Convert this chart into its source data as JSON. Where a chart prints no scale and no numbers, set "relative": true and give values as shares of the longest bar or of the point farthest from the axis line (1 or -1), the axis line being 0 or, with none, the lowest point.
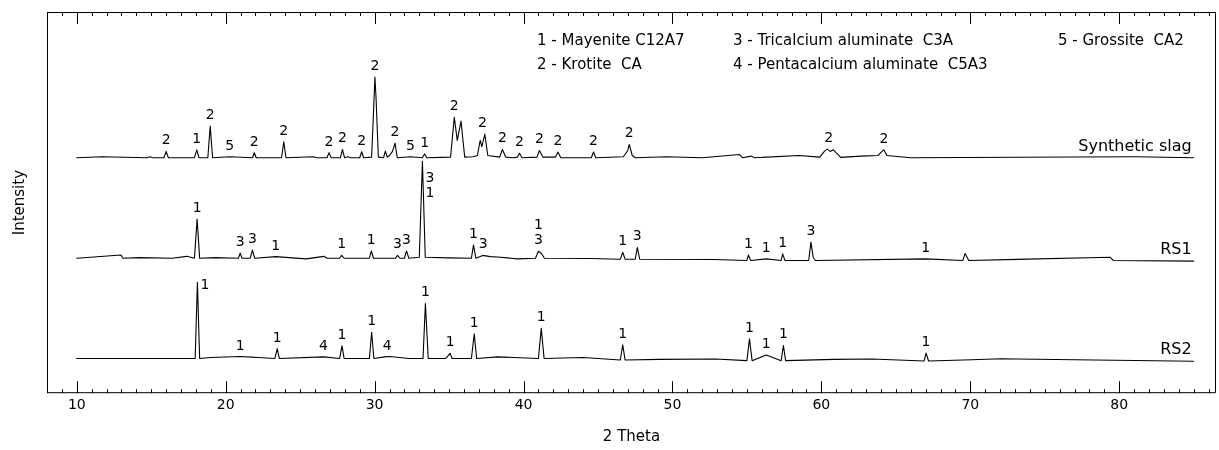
{
  "chart_data": {
    "type": "line",
    "xlabel": "2 Theta",
    "ylabel": "Intensity",
    "relative": true,
    "legend": false,
    "marker": "none",
    "line_style": "solid",
    "xlim": [
      8,
      86.5
    ],
    "xticks": [
      {
        "value": 8,
        "label": null
      },
      {
        "value": 9,
        "label": null
      },
      10,
      {
        "value": 11,
        "label": null
      },
      {
        "value": 12,
        "label": null
      },
      {
        "value": 13,
        "label": null
      },
      {
        "value": 14,
        "label": null
      },
      {
        "value": 15,
        "label": null
      },
      {
        "value": 16,
        "label": null
      },
      {
        "value": 17,
        "label": null
      },
      {
        "value": 18,
        "label": null
      },
      {
        "value": 19,
        "label": null
      },
      20,
      {
        "value": 21,
        "label": null
      },
      {
        "value": 22,
        "label": null
      },
      {
        "value": 23,
        "label": null
      },
      {
        "value": 24,
        "label": null
      },
      {
        "value": 25,
        "label": null
      },
      {
        "value": 26,
        "label": null
      },
      {
        "value": 27,
        "label": null
      },
      {
        "value": 28,
        "label": null
      },
      {
        "value": 29,
        "label": null
      },
      30,
      {
        "value": 31,
        "label": null
      },
      {
        "value": 32,
        "label": null
      },
      {
        "value": 33,
        "label": null
      },
      {
        "value": 34,
        "label": null
      },
      {
        "value": 35,
        "label": null
      },
      {
        "value": 36,
        "label": null
      },
      {
        "value": 37,
        "label": null
      },
      {
        "value": 38,
        "label": null
      },
      {
        "value": 39,
        "label": null
      },
      40,
      {
        "value": 41,
        "label": null
      },
      {
        "value": 42,
        "label": null
      },
      {
        "value": 43,
        "label": null
      },
      {
        "value": 44,
        "label": null
      },
      {
        "value": 45,
        "label": null
      },
      {
        "value": 46,
        "label": null
      },
      {
        "value": 47,
        "label": null
      },
      {
        "value": 48,
        "label": null
      },
      {
        "value": 49,
        "label": null
      },
      50,
      {
        "value": 51,
        "label": null
      },
      {
        "value": 52,
        "label": null
      },
      {
        "value": 53,
        "label": null
      },
      {
        "value": 54,
        "label": null
      },
      {
        "value": 55,
        "label": null
      },
      {
        "value": 56,
        "label": null
      },
      {
        "value": 57,
        "label": null
      },
      {
        "value": 58,
        "label": null
      },
      {
        "value": 59,
        "label": null
      },
      60,
      {
        "value": 61,
        "label": null
      },
      {
        "value": 62,
        "label": null
      },
      {
        "value": 63,
        "label": null
      },
      {
        "value": 64,
        "label": null
      },
      {
        "value": 65,
        "label": null
      },
      {
        "value": 66,
        "label": null
      },
      {
        "value": 67,
        "label": null
      },
      {
        "value": 68,
        "label": null
      },
      {
        "value": 69,
        "label": null
      },
      70,
      {
        "value": 71,
        "label": null
      },
      {
        "value": 72,
        "label": null
      },
      {
        "value": 73,
        "label": null
      },
      {
        "value": 74,
        "label": null
      },
      {
        "value": 75,
        "label": null
      },
      {
        "value": 76,
        "label": null
      },
      {
        "value": 77,
        "label": null
      },
      {
        "value": 78,
        "label": null
      },
      {
        "value": 79,
        "label": null
      },
      80,
      {
        "value": 81,
        "label": null
      },
      {
        "value": 82,
        "label": null
      },
      {
        "value": 83,
        "label": null
      },
      {
        "value": 84,
        "label": null
      },
      {
        "value": 85,
        "label": null
      },
      {
        "value": 86,
        "label": null
      }
    ],
    "series": [
      {
        "name": "Synthetic slag",
        "color": "#000000",
        "x": [
          10,
          11.7,
          14.7,
          14.9,
          15.1,
          15.85,
          16.0,
          16.15,
          17.9,
          18.06,
          18.2,
          18.8,
          18.96,
          19.12,
          20.27,
          21.8,
          21.92,
          22.05,
          23.75,
          23.9,
          24.05,
          25.9,
          26.1,
          26.8,
          26.94,
          27.08,
          27.7,
          27.84,
          27.98,
          28.2,
          28.4,
          29.0,
          29.13,
          29.26,
          29.8,
          29.9,
          30.02,
          30.1,
          30.25,
          30.6,
          30.72,
          30.85,
          31.0,
          31.2,
          31.37,
          31.52,
          32.4,
          33.2,
          33.36,
          33.5,
          35.1,
          35.35,
          35.55,
          35.8,
          36.05,
          36.6,
          36.9,
          37.09,
          37.2,
          37.4,
          37.6,
          38.4,
          38.58,
          38.8,
          39.3,
          39.6,
          39.73,
          39.9,
          40.9,
          41.07,
          41.3,
          42.15,
          42.31,
          42.5,
          44.55,
          44.7,
          44.85,
          46.7,
          47.0,
          47.1,
          47.3,
          47.5,
          49.6,
          52.0,
          54.5,
          54.7,
          55.3,
          55.5,
          58.5,
          59.9,
          60.2,
          60.4,
          60.6,
          60.8,
          61.0,
          61.3,
          62.65,
          63.8,
          64.0,
          64.2,
          64.4,
          66,
          81.1,
          85
        ],
        "values": [
          0.745,
          0.748,
          0.745,
          0.748,
          0.745,
          0.745,
          0.765,
          0.745,
          0.745,
          0.77,
          0.745,
          0.745,
          0.845,
          0.745,
          0.748,
          0.745,
          0.761,
          0.745,
          0.745,
          0.795,
          0.745,
          0.748,
          0.745,
          0.745,
          0.761,
          0.745,
          0.745,
          0.771,
          0.745,
          0.748,
          0.745,
          0.745,
          0.764,
          0.745,
          0.747,
          0.86,
          1.0,
          0.93,
          0.747,
          0.745,
          0.766,
          0.747,
          0.752,
          0.765,
          0.791,
          0.745,
          0.748,
          0.745,
          0.757,
          0.745,
          0.747,
          0.873,
          0.8,
          0.861,
          0.747,
          0.748,
          0.752,
          0.8,
          0.78,
          0.82,
          0.752,
          0.747,
          0.771,
          0.747,
          0.745,
          0.747,
          0.759,
          0.745,
          0.747,
          0.768,
          0.747,
          0.747,
          0.763,
          0.745,
          0.745,
          0.763,
          0.745,
          0.748,
          0.768,
          0.787,
          0.752,
          0.745,
          0.748,
          0.745,
          0.755,
          0.745,
          0.75,
          0.745,
          0.752,
          0.747,
          0.765,
          0.772,
          0.765,
          0.77,
          0.76,
          0.746,
          0.75,
          0.752,
          0.762,
          0.77,
          0.752,
          0.745,
          0.748,
          0.745
        ]
      },
      {
        "name": "RS1",
        "color": "#000000",
        "x": [
          10,
          12.96,
          13.1,
          14.2,
          16.4,
          17.4,
          17.9,
          18.08,
          18.25,
          19.3,
          20.85,
          20.97,
          21.1,
          21.65,
          21.79,
          21.95,
          23.36,
          25.4,
          26.6,
          26.8,
          27.65,
          27.79,
          27.95,
          29.65,
          29.78,
          29.92,
          31.4,
          31.54,
          31.7,
          32.0,
          32.14,
          32.3,
          33.0,
          33.21,
          33.4,
          35.0,
          36.5,
          36.64,
          36.8,
          37.26,
          37.76,
          38.26,
          39.6,
          40.8,
          41.0,
          41.2,
          41.4,
          44.5,
          46.5,
          46.66,
          46.82,
          47.5,
          47.64,
          47.8,
          52.76,
          55.0,
          55.1,
          55.25,
          56.3,
          57.3,
          57.4,
          57.55,
          59.15,
          59.3,
          59.45,
          59.6,
          67.0,
          69.5,
          69.65,
          69.9,
          79.4,
          79.6,
          85
        ],
        "values": [
          0.427,
          0.437,
          0.427,
          0.429,
          0.427,
          0.433,
          0.427,
          0.551,
          0.427,
          0.429,
          0.427,
          0.443,
          0.427,
          0.427,
          0.453,
          0.427,
          0.432,
          0.425,
          0.433,
          0.427,
          0.427,
          0.436,
          0.427,
          0.427,
          0.45,
          0.427,
          0.427,
          0.436,
          0.427,
          0.427,
          0.45,
          0.427,
          0.43,
          0.734,
          0.43,
          0.428,
          0.427,
          0.469,
          0.427,
          0.436,
          0.432,
          0.431,
          0.425,
          0.427,
          0.449,
          0.442,
          0.427,
          0.426,
          0.424,
          0.446,
          0.424,
          0.424,
          0.461,
          0.424,
          0.423,
          0.42,
          0.437,
          0.42,
          0.425,
          0.42,
          0.441,
          0.42,
          0.42,
          0.478,
          0.43,
          0.42,
          0.425,
          0.42,
          0.442,
          0.42,
          0.43,
          0.42,
          0.418
        ]
      },
      {
        "name": "RS2",
        "color": "#000000",
        "x": [
          10,
          17.95,
          18.1,
          18.25,
          19.0,
          20.97,
          23.3,
          23.46,
          23.6,
          26.57,
          27.65,
          27.81,
          27.95,
          29.65,
          29.8,
          29.95,
          30.67,
          31.04,
          32.3,
          33.25,
          33.41,
          33.6,
          34.78,
          35.07,
          35.2,
          36.5,
          36.69,
          36.85,
          38.26,
          41.0,
          41.19,
          41.38,
          44.0,
          46.5,
          46.66,
          46.82,
          49.2,
          52.9,
          55.0,
          55.17,
          55.35,
          56.3,
          57.3,
          57.45,
          57.6,
          60.85,
          63.4,
          66.9,
          67.03,
          67.2,
          70.1,
          72.1,
          85
        ],
        "values": [
          0.11,
          0.11,
          0.351,
          0.11,
          0.113,
          0.116,
          0.11,
          0.141,
          0.11,
          0.115,
          0.11,
          0.15,
          0.11,
          0.11,
          0.193,
          0.11,
          0.115,
          0.116,
          0.11,
          0.11,
          0.284,
          0.11,
          0.11,
          0.126,
          0.11,
          0.11,
          0.188,
          0.11,
          0.115,
          0.11,
          0.205,
          0.11,
          0.113,
          0.105,
          0.153,
          0.105,
          0.107,
          0.108,
          0.103,
          0.172,
          0.103,
          0.121,
          0.103,
          0.151,
          0.103,
          0.107,
          0.108,
          0.102,
          0.127,
          0.102,
          0.106,
          0.109,
          0.101
        ]
      }
    ],
    "annotations": [
      "1 - Mayenite C12A7",
      "2 - Krotite  CA",
      "3 - Tricalcium aluminate  C3A",
      "4 - Pentacalcium aluminate  C5A3",
      "5 - Grossite  CA2",
      {
        "text": "2",
        "x": 16.0,
        "y": 0.765
      },
      {
        "text": "1",
        "x": 18.06,
        "y": 0.77
      },
      {
        "text": "2",
        "x": 18.96,
        "y": 0.845
      },
      {
        "text": "5",
        "x": 20.27,
        "y": 0.748
      },
      {
        "text": "2",
        "x": 21.92,
        "y": 0.761
      },
      {
        "text": "2",
        "x": 23.9,
        "y": 0.795
      },
      {
        "text": "2",
        "x": 26.94,
        "y": 0.761
      },
      {
        "text": "2",
        "x": 27.84,
        "y": 0.771
      },
      {
        "text": "2",
        "x": 29.13,
        "y": 0.764
      },
      {
        "text": "2",
        "x": 30.02,
        "y": 1.0
      },
      {
        "text": "2",
        "x": 31.37,
        "y": 0.791
      },
      {
        "text": "5",
        "x": 32.4,
        "y": 0.748
      },
      {
        "text": "1",
        "x": 33.36,
        "y": 0.757
      },
      {
        "text": "2",
        "x": 35.35,
        "y": 0.873
      },
      {
        "text": "2",
        "x": 37.25,
        "y": 0.82
      },
      {
        "text": "2",
        "x": 38.58,
        "y": 0.771
      },
      {
        "text": "2",
        "x": 39.73,
        "y": 0.759
      },
      {
        "text": "2",
        "x": 41.07,
        "y": 0.768
      },
      {
        "text": "2",
        "x": 42.31,
        "y": 0.763
      },
      {
        "text": "2",
        "x": 44.7,
        "y": 0.763
      },
      {
        "text": "2",
        "x": 47.1,
        "y": 0.787
      },
      {
        "text": "2",
        "x": 60.5,
        "y": 0.772
      },
      {
        "text": "2",
        "x": 64.2,
        "y": 0.77
      },
      {
        "text": "1",
        "x": 18.08,
        "y": 0.551
      },
      {
        "text": "3",
        "x": 20.97,
        "y": 0.443
      },
      {
        "text": "3",
        "x": 21.79,
        "y": 0.453
      },
      {
        "text": "1",
        "x": 23.36,
        "y": 0.432
      },
      {
        "text": "1",
        "x": 27.79,
        "y": 0.436
      },
      {
        "text": "1",
        "x": 29.78,
        "y": 0.45
      },
      {
        "text": "3",
        "x": 31.54,
        "y": 0.436
      },
      {
        "text": "3",
        "x": 32.14,
        "y": 0.45
      },
      {
        "text": "3\n1",
        "x": 33.21,
        "y": 0.61
      },
      {
        "text": "1",
        "x": 36.64,
        "y": 0.469
      },
      {
        "text": "3",
        "x": 37.3,
        "y": 0.436
      },
      {
        "text": "1\n3",
        "x": 41.0,
        "y": 0.449
      },
      {
        "text": "1",
        "x": 46.66,
        "y": 0.446
      },
      {
        "text": "3",
        "x": 47.64,
        "y": 0.461
      },
      {
        "text": "1",
        "x": 55.1,
        "y": 0.437
      },
      {
        "text": "1",
        "x": 56.3,
        "y": 0.425
      },
      {
        "text": "1",
        "x": 57.4,
        "y": 0.441
      },
      {
        "text": "3",
        "x": 59.3,
        "y": 0.478
      },
      {
        "text": "1",
        "x": 67.0,
        "y": 0.425
      },
      {
        "text": "1",
        "x": 18.1,
        "y": 0.32
      },
      {
        "text": "1",
        "x": 20.97,
        "y": 0.116
      },
      {
        "text": "1",
        "x": 23.46,
        "y": 0.141
      },
      {
        "text": "4",
        "x": 26.57,
        "y": 0.115
      },
      {
        "text": "1",
        "x": 27.81,
        "y": 0.15
      },
      {
        "text": "1",
        "x": 29.8,
        "y": 0.193
      },
      {
        "text": "4",
        "x": 30.85,
        "y": 0.116
      },
      {
        "text": "1",
        "x": 33.41,
        "y": 0.284
      },
      {
        "text": "1",
        "x": 35.07,
        "y": 0.126
      },
      {
        "text": "1",
        "x": 36.69,
        "y": 0.188
      },
      {
        "text": "1",
        "x": 41.19,
        "y": 0.205
      },
      {
        "text": "1",
        "x": 46.66,
        "y": 0.153
      },
      {
        "text": "1",
        "x": 55.17,
        "y": 0.172
      },
      {
        "text": "1",
        "x": 56.3,
        "y": 0.121
      },
      {
        "text": "1",
        "x": 57.45,
        "y": 0.151
      },
      {
        "text": "1",
        "x": 67.03,
        "y": 0.127
      }
    ]
  }
}
